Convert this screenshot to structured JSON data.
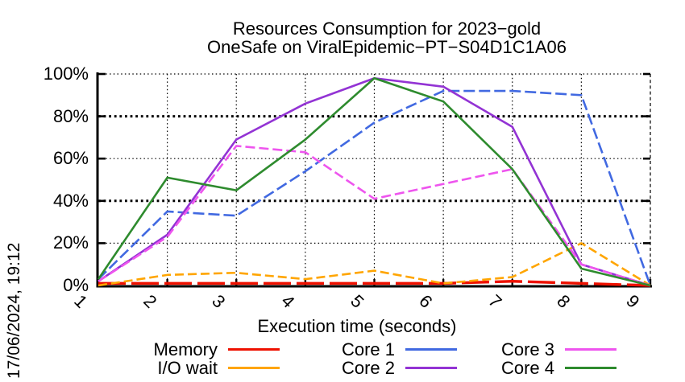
{
  "window": {
    "timestamp": "17/06/2024, 19:12"
  },
  "chart_data": {
    "type": "line",
    "title": "Resources Consumption for 2023−gold",
    "subtitle": "OneSafe on ViralEpidemic−PT−S04D1C1A06",
    "xlabel": "Execution time (seconds)",
    "ylabel": "",
    "x": [
      1,
      2,
      3,
      4,
      5,
      6,
      7,
      8,
      9
    ],
    "x_tick_labels": [
      "1",
      "2",
      "3",
      "4",
      "5",
      "6",
      "7",
      "8",
      "9"
    ],
    "xlim": [
      1,
      9
    ],
    "ylim": [
      0,
      100
    ],
    "y_tick_values": [
      0,
      20,
      40,
      60,
      80,
      100
    ],
    "y_tick_labels": [
      "0%",
      "20%",
      "40%",
      "60%",
      "80%",
      "100%"
    ],
    "grid": true,
    "legend_position": "bottom",
    "axis_color": "#000000",
    "series": [
      {
        "name": "Memory",
        "color": "#ee1100",
        "values": [
          1,
          1,
          1,
          1,
          1,
          1,
          2,
          1,
          0
        ]
      },
      {
        "name": "I/O wait",
        "color": "#ffa500",
        "values": [
          0,
          5,
          6,
          3,
          7,
          1,
          4,
          20,
          0
        ]
      },
      {
        "name": "Core 1",
        "color": "#4169e1",
        "values": [
          3,
          35,
          33,
          54,
          77,
          92,
          92,
          90,
          0
        ]
      },
      {
        "name": "Core 2",
        "color": "#9333d4",
        "values": [
          2,
          24,
          69,
          86,
          98,
          94,
          75,
          10,
          0
        ]
      },
      {
        "name": "Core 3",
        "color": "#ee55ee",
        "values": [
          2,
          23,
          66,
          63,
          41,
          48,
          55,
          10,
          0
        ]
      },
      {
        "name": "Core 4",
        "color": "#2e8b2e",
        "values": [
          3,
          51,
          45,
          69,
          98,
          87,
          55,
          8,
          0
        ]
      }
    ]
  }
}
